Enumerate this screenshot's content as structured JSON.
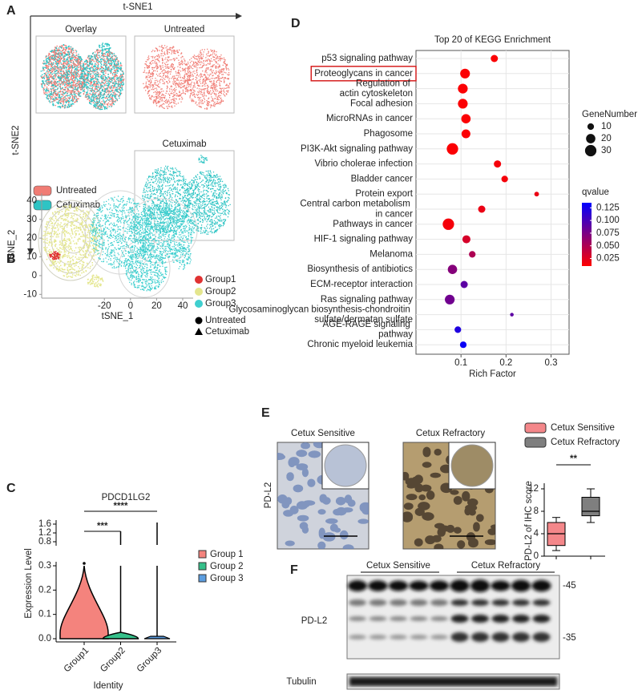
{
  "panels": {
    "A": {
      "label": "A",
      "x_axis": "t-SNE1",
      "y_axis": "t-SNE2",
      "plots": [
        "Overlay",
        "Untreated",
        "Cetuximab"
      ],
      "legend": [
        {
          "name": "Untreated",
          "color": "#f07c74"
        },
        {
          "name": "Cetuximab",
          "color": "#2ec4c4"
        }
      ]
    },
    "B": {
      "label": "B"
    },
    "C": {
      "label": "C"
    },
    "D": {
      "label": "D"
    },
    "E": {
      "label": "E",
      "images": [
        "Cetux Sensitive",
        "Cetux Refractory"
      ],
      "stain": "PD-L2"
    },
    "F": {
      "label": "F",
      "groups": [
        "Cetux Sensitive",
        "Cetux Refractory"
      ],
      "rows": [
        "PD-L2",
        "Tubulin"
      ],
      "markers": [
        "-45",
        "-35"
      ]
    }
  },
  "chart_data": [
    {
      "type": "dot",
      "title": "Top 20 of KEGG Enrichment",
      "x_label": "Rich Factor",
      "categories": [
        "p53 signaling pathway",
        "Proteoglycans in cancer",
        "Regulation of actin cytoskeleton",
        "Focal adhesion",
        "MicroRNAs in cancer",
        "Phagosome",
        "PI3K-Akt signaling pathway",
        "Vibrio cholerae infection",
        "Bladder cancer",
        "Protein export",
        "Central carbon metabolism in cancer",
        "Pathways in cancer",
        "HIF-1 signaling pathway",
        "Melanoma",
        "Biosynthesis of antibiotics",
        "ECM-receptor interaction",
        "Ras signaling pathway",
        "Glycosaminoglycan biosynthesis-chondroitin sulfate/dermatan sulfate",
        "AGE-RAGE signaling pathway",
        "Chronic myeloid leukemia"
      ],
      "values": [
        0.174,
        0.109,
        0.104,
        0.104,
        0.111,
        0.111,
        0.081,
        0.181,
        0.197,
        0.268,
        0.146,
        0.072,
        0.112,
        0.125,
        0.081,
        0.107,
        0.075,
        0.213,
        0.093,
        0.105
      ],
      "sizes": [
        12,
        22,
        22,
        22,
        20,
        18,
        30,
        12,
        10,
        5,
        12,
        30,
        15,
        10,
        20,
        12,
        22,
        3,
        10,
        10
      ],
      "size_label": "GeneNumber",
      "size_ticks": [
        10,
        20,
        30
      ],
      "colors": [
        0.012,
        0.012,
        0.012,
        0.012,
        0.012,
        0.012,
        0.012,
        0.015,
        0.015,
        0.02,
        0.02,
        0.015,
        0.03,
        0.05,
        0.07,
        0.09,
        0.08,
        0.09,
        0.12,
        0.13
      ],
      "color_label": "qvalue",
      "color_range": [
        0.01,
        0.135
      ],
      "color_map": [
        "#ff0000",
        "#0000ff"
      ],
      "color_ticks": [
        0.125,
        {
          "value": 0.1,
          "label": "0.100"
        },
        0.075,
        {
          "value": 0.05,
          "label": "0.050"
        },
        0.025
      ],
      "xlim": [
        0,
        0.34
      ],
      "xticks": [
        0.1,
        0.2,
        0.3
      ],
      "grid": true,
      "highlight": [
        1
      ]
    },
    {
      "type": "scatter",
      "x_label": "tSNE_1",
      "y_label": "tSNE_2",
      "xlim": [
        -68,
        48
      ],
      "ylim": [
        -12,
        44
      ],
      "xticks": [
        -20,
        0,
        20,
        40
      ],
      "yticks": [
        -10,
        0,
        10,
        20,
        30,
        40
      ],
      "series": [
        {
          "name": "Group1",
          "color": "#e03232"
        },
        {
          "name": "Group2",
          "color": "#e4e68e"
        },
        {
          "name": "Group3",
          "color": "#3fcfcf"
        }
      ],
      "shapes": [
        {
          "name": "Untreated",
          "marker": "circle"
        },
        {
          "name": "Cetuximab",
          "marker": "triangle"
        }
      ]
    },
    {
      "type": "violin",
      "title": "PDCD1LG2",
      "x_label": "Identity",
      "y_label": "Expression Level",
      "categories": [
        "Group1",
        "Group2",
        "Group3"
      ],
      "series": [
        {
          "name": "Group 1",
          "color": "#f4837d"
        },
        {
          "name": "Group 2",
          "color": "#35c08a"
        },
        {
          "name": "Group 3",
          "color": "#5b9de0"
        }
      ],
      "ylim": [
        0,
        1.6
      ],
      "ybreak": [
        0.3,
        0.8
      ],
      "yticks": [
        {
          "value": 0,
          "label": "0.0"
        },
        0.1,
        0.2,
        0.3,
        0.8,
        1.2,
        1.6
      ],
      "annotations": [
        {
          "from": 0,
          "to": 1,
          "text": "***"
        },
        {
          "from": 0,
          "to": 2,
          "text": "****"
        }
      ]
    },
    {
      "type": "box",
      "y_label": "PD-L2 of IHC score",
      "series": [
        {
          "name": "Cetux Sensitive",
          "color": "#f4878a",
          "whislo": 1,
          "q1": 1.9,
          "med": 4,
          "q3": 6,
          "whishi": 6.9
        },
        {
          "name": "Cetux Refractory",
          "color": "#7f7f7f",
          "whislo": 6,
          "q1": 7.2,
          "med": 8,
          "q3": 10.5,
          "whishi": 12
        }
      ],
      "ylim": [
        0,
        13
      ],
      "yticks": [
        0,
        4,
        8,
        12
      ],
      "annotations": [
        {
          "from": 0,
          "to": 1,
          "text": "**"
        }
      ]
    }
  ]
}
